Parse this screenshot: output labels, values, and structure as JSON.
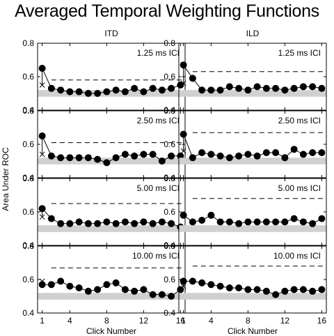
{
  "figure_title": "Averaged Temporal Weighting Functions",
  "chart_data": {
    "type": "line",
    "title": "Averaged Temporal Weighting Functions",
    "ylabel": "Area Under ROC",
    "xlabel": "Click Number",
    "columns": [
      "ITD",
      "ILD"
    ],
    "ylim": [
      0.4,
      0.8
    ],
    "yticks": [
      0.4,
      0.6,
      0.8
    ],
    "xlim": [
      0.5,
      16.5
    ],
    "xticks": [
      1,
      4,
      8,
      12,
      16
    ],
    "chance_band": [
      0.48,
      0.52
    ],
    "grid": false,
    "panels": [
      {
        "column": "ITD",
        "label": "1.25 ms ICI",
        "dashed": 0.58,
        "cross": 0.55,
        "values": [
          0.65,
          0.53,
          0.52,
          0.51,
          0.51,
          0.5,
          0.5,
          0.51,
          0.52,
          0.51,
          0.53,
          0.51,
          0.53,
          0.52,
          0.53,
          0.55
        ]
      },
      {
        "column": "ILD",
        "label": "1.25 ms ICI",
        "dashed": 0.63,
        "cross": 0.56,
        "values": [
          0.67,
          0.59,
          0.52,
          0.52,
          0.52,
          0.54,
          0.53,
          0.52,
          0.54,
          0.53,
          0.53,
          0.52,
          0.53,
          0.54,
          0.54,
          0.53
        ]
      },
      {
        "column": "ITD",
        "label": "2.50 ms ICI",
        "dashed": 0.61,
        "cross": 0.54,
        "values": [
          0.65,
          0.53,
          0.52,
          0.52,
          0.52,
          0.52,
          0.51,
          0.49,
          0.52,
          0.54,
          0.53,
          0.54,
          0.54,
          0.5,
          0.53,
          0.53
        ]
      },
      {
        "column": "ILD",
        "label": "2.50 ms ICI",
        "dashed": 0.67,
        "cross": 0.56,
        "values": [
          0.66,
          0.52,
          0.55,
          0.54,
          0.53,
          0.52,
          0.53,
          0.54,
          0.53,
          0.55,
          0.55,
          0.52,
          0.57,
          0.54,
          0.55,
          0.55
        ]
      },
      {
        "column": "ITD",
        "label": "5.00 ms ICI",
        "dashed": 0.65,
        "cross": 0.57,
        "values": [
          0.62,
          0.56,
          0.53,
          0.53,
          0.54,
          0.53,
          0.53,
          0.54,
          0.53,
          0.54,
          0.53,
          0.54,
          0.53,
          0.54,
          0.53,
          0.51
        ]
      },
      {
        "column": "ILD",
        "label": "5.00 ms ICI",
        "dashed": 0.68,
        "cross": 0.58,
        "values": [
          0.58,
          0.54,
          0.55,
          0.58,
          0.54,
          0.54,
          0.53,
          0.54,
          0.54,
          0.54,
          0.54,
          0.54,
          0.56,
          0.54,
          0.53,
          0.56
        ]
      },
      {
        "column": "ITD",
        "label": "10.00 ms ICI",
        "dashed": 0.67,
        "cross": 0.59,
        "values": [
          0.57,
          0.57,
          0.59,
          0.56,
          0.55,
          0.53,
          0.54,
          0.57,
          0.58,
          0.54,
          0.53,
          0.54,
          0.51,
          0.51,
          0.5,
          0.54
        ]
      },
      {
        "column": "ILD",
        "label": "10.00 ms ICI",
        "dashed": 0.68,
        "cross": 0.56,
        "values": [
          0.59,
          0.59,
          0.58,
          0.57,
          0.56,
          0.55,
          0.55,
          0.54,
          0.54,
          0.53,
          0.51,
          0.53,
          0.54,
          0.54,
          0.53,
          0.54
        ]
      }
    ]
  }
}
